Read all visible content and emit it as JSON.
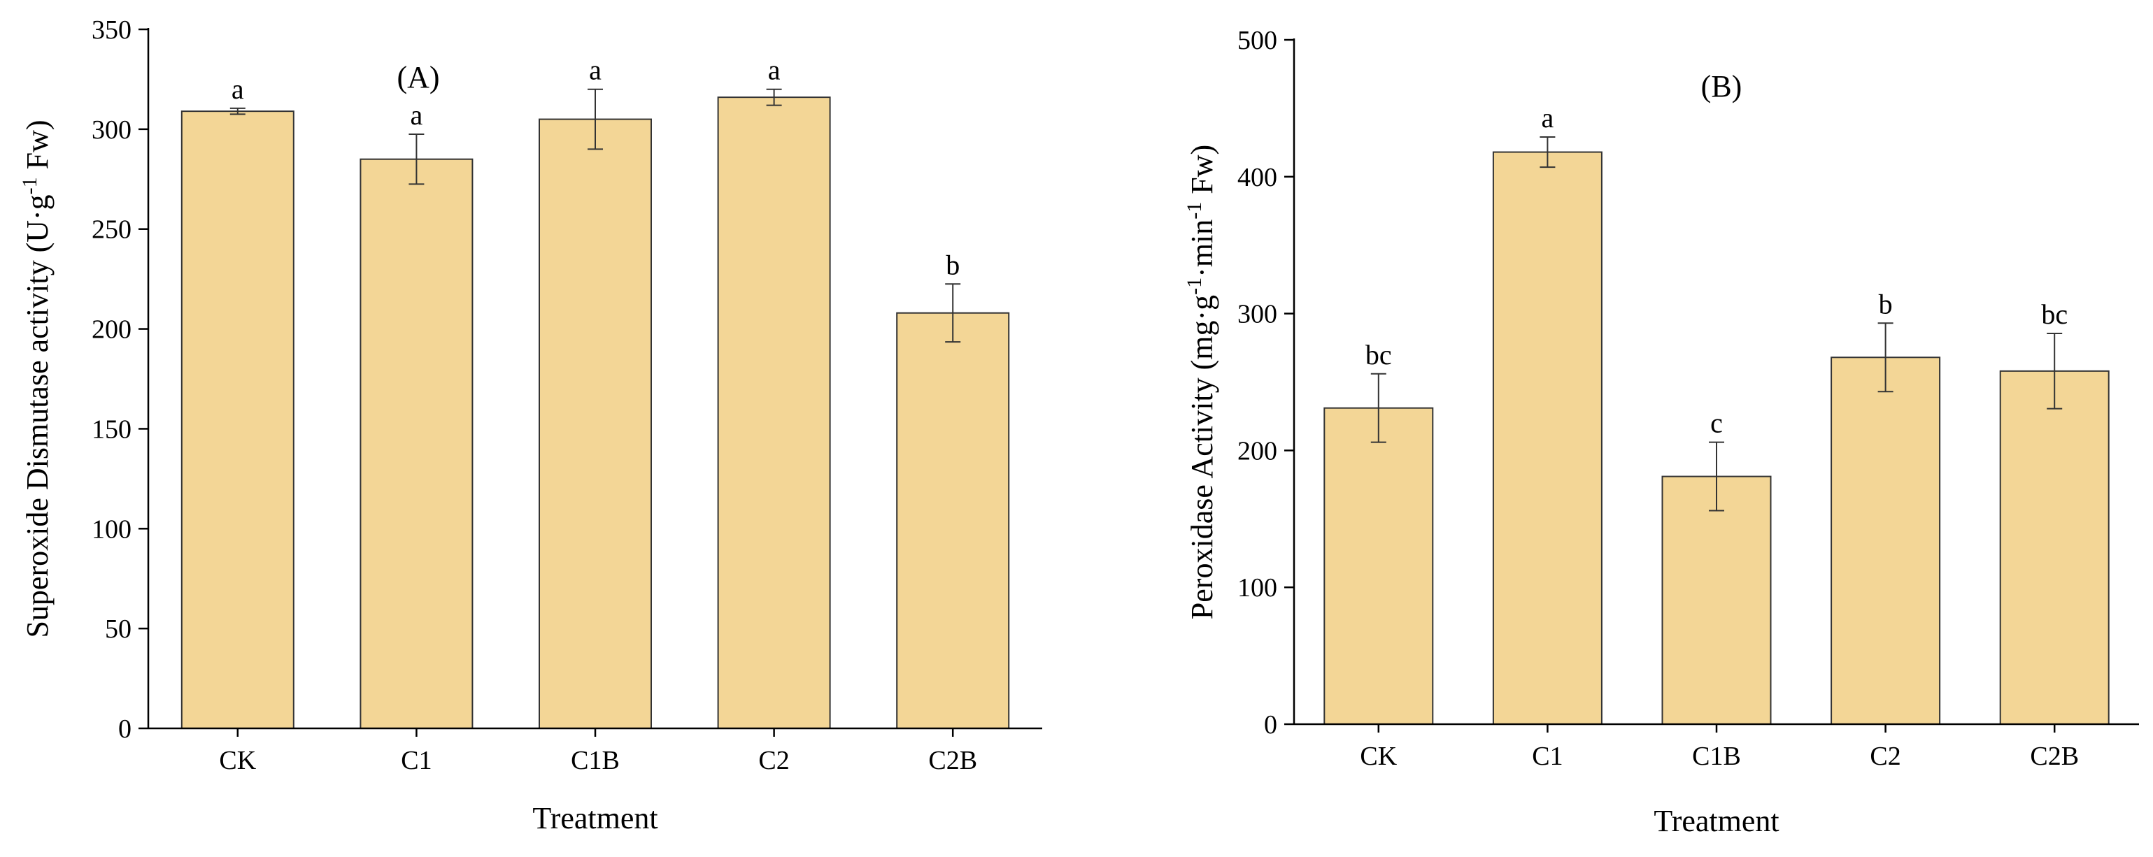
{
  "chart_data": [
    {
      "type": "bar",
      "panel_label": "(A)",
      "categories": [
        "CK",
        "C1",
        "C1B",
        "C2",
        "C2B"
      ],
      "values": [
        309,
        285,
        305,
        316,
        208
      ],
      "errors": [
        1.5,
        12.5,
        15,
        4,
        14.5
      ],
      "significance": [
        "a",
        "a",
        "a",
        "a",
        "b"
      ],
      "xlabel": "Treatment",
      "ylabel": {
        "prefix": "Superoxide Dismutase activity (U·g",
        "sup": "-1",
        "suffix": " Fw)"
      },
      "ylim": [
        0,
        350
      ],
      "yticks": [
        0,
        50,
        100,
        150,
        200,
        250,
        300,
        350
      ],
      "bar_color": "#f3d696",
      "grid": false,
      "legend": "none"
    },
    {
      "type": "bar",
      "panel_label": "(B)",
      "categories": [
        "CK",
        "C1",
        "C1B",
        "C2",
        "C2B"
      ],
      "values": [
        231,
        418,
        181,
        268,
        258
      ],
      "errors": [
        25,
        11,
        25,
        25,
        27.5
      ],
      "significance": [
        "bc",
        "a",
        "c",
        "b",
        "bc"
      ],
      "xlabel": "Treatment",
      "ylabel": {
        "prefix": "Peroxidase Activity (mg·g",
        "sup": "-1",
        "mid": "·min",
        "sup2": "-1",
        "suffix": " Fw)"
      },
      "ylim": [
        0,
        500
      ],
      "yticks": [
        0,
        100,
        200,
        300,
        400,
        500
      ],
      "bar_color": "#f3d696",
      "grid": false,
      "legend": "none"
    }
  ]
}
